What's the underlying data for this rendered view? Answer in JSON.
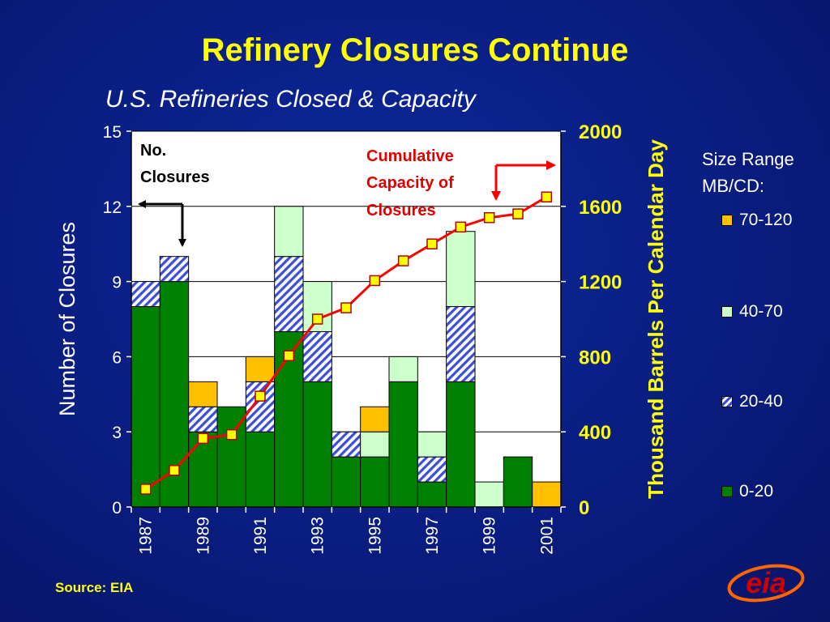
{
  "title": "Refinery Closures Continue",
  "source": "Source: EIA",
  "chart_data": {
    "type": "bar",
    "stacked": true,
    "title": "U.S. Refineries Closed & Capacity",
    "ylabel": "Number of Closures",
    "y2label": "Thousand Barrels Per Calendar Day",
    "ylim": [
      0,
      15
    ],
    "y2lim": [
      0,
      2000
    ],
    "yticks": [
      0,
      3,
      6,
      9,
      12,
      15
    ],
    "y2ticks": [
      0,
      400,
      800,
      1200,
      1600,
      2000
    ],
    "categories": [
      "1987",
      "1988",
      "1989",
      "1990",
      "1991",
      "1992",
      "1993",
      "1994",
      "1995",
      "1996",
      "1997",
      "1998",
      "1999",
      "2000",
      "2001"
    ],
    "xtick_labels": [
      "1987",
      "",
      "1989",
      "",
      "1991",
      "",
      "1993",
      "",
      "1995",
      "",
      "1997",
      "",
      "1999",
      "",
      "2001"
    ],
    "legend_title": "Size Range MB/CD:",
    "legend_placement": "right",
    "series": [
      {
        "name": "0-20",
        "color": "#008000",
        "values": [
          8,
          9,
          3,
          4,
          3,
          7,
          5,
          2,
          2,
          5,
          1,
          5,
          0,
          2,
          0
        ]
      },
      {
        "name": "20-40",
        "color": "#3a4fd8",
        "pattern": "hatch",
        "values": [
          1,
          1,
          1,
          0,
          2,
          3,
          2,
          1,
          0,
          0,
          1,
          3,
          0,
          0,
          0
        ]
      },
      {
        "name": "40-70",
        "color": "#ccffcc",
        "values": [
          0,
          0,
          0,
          0,
          0,
          2,
          2,
          0,
          1,
          1,
          1,
          3,
          1,
          0,
          0
        ]
      },
      {
        "name": "70-120",
        "color": "#ffc000",
        "values": [
          0,
          0,
          1,
          0,
          1,
          0,
          0,
          0,
          1,
          0,
          0,
          0,
          0,
          0,
          1
        ]
      }
    ],
    "line": {
      "name": "Cumulative Capacity of Closures",
      "axis": "right",
      "color": "#ff0000",
      "marker_color": "#ffff00",
      "values": [
        95,
        195,
        365,
        385,
        590,
        805,
        1000,
        1060,
        1205,
        1310,
        1400,
        1490,
        1540,
        1560,
        1650
      ]
    },
    "annotations": [
      {
        "text_lines": [
          "No.",
          "Closures"
        ],
        "points_to": "left axis"
      },
      {
        "text_lines": [
          "Cumulative",
          "Capacity of",
          "Closures"
        ],
        "points_to": "right axis"
      }
    ]
  },
  "logo": {
    "text": "eia"
  }
}
